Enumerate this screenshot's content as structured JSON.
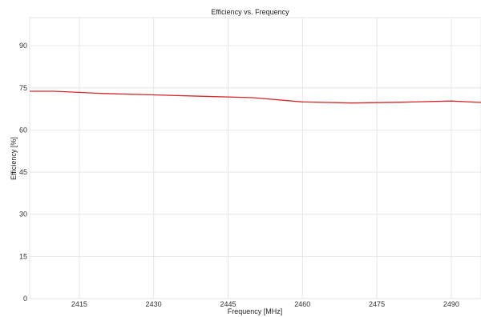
{
  "chart_data": {
    "type": "line",
    "title": "Efficiency vs. Frequency",
    "xlabel": "Frequency [MHz]",
    "ylabel": "Efficiency [%]",
    "xlim": [
      2405,
      2496
    ],
    "ylim": [
      0,
      100
    ],
    "xticks": [
      2415,
      2430,
      2445,
      2460,
      2475,
      2490
    ],
    "yticks": [
      0,
      15,
      30,
      45,
      60,
      75,
      90
    ],
    "grid": true,
    "series": [
      {
        "color": "#d62728",
        "x": [
          2405,
          2410,
          2420,
          2430,
          2440,
          2450,
          2460,
          2470,
          2480,
          2490,
          2496
        ],
        "y": [
          73.8,
          73.8,
          73.0,
          72.5,
          72.0,
          71.5,
          70.0,
          69.6,
          69.9,
          70.3,
          69.8
        ]
      }
    ]
  }
}
